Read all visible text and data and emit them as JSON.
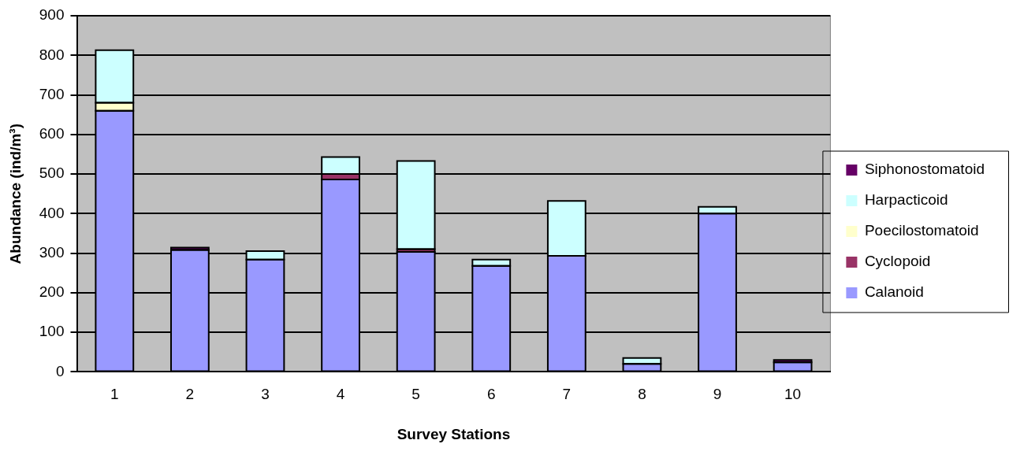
{
  "chart_data": {
    "type": "bar",
    "stacked": true,
    "xlabel": "Survey Stations",
    "ylabel": "Abundance (ind/m³)",
    "categories": [
      "1",
      "2",
      "3",
      "4",
      "5",
      "6",
      "7",
      "8",
      "9",
      "10"
    ],
    "series": [
      {
        "name": "Calanoid",
        "color": "#9999ff",
        "values": [
          660,
          308,
          284,
          486,
          303,
          268,
          293,
          20,
          400,
          24
        ]
      },
      {
        "name": "Cyclopoid",
        "color": "#993366",
        "values": [
          null,
          null,
          null,
          14,
          7,
          null,
          null,
          null,
          null,
          null
        ]
      },
      {
        "name": "Poecilostomatoid",
        "color": "#ffffcc",
        "values": [
          20,
          null,
          null,
          null,
          null,
          null,
          null,
          null,
          null,
          null
        ]
      },
      {
        "name": "Harpacticoid",
        "color": "#ccffff",
        "values": [
          133,
          null,
          21,
          43,
          223,
          16,
          139,
          15,
          17,
          null
        ]
      },
      {
        "name": "Siphonostomatoid",
        "color": "#660066",
        "values": [
          null,
          6,
          null,
          null,
          null,
          null,
          null,
          null,
          null,
          6
        ]
      }
    ],
    "ylim": [
      0,
      900
    ],
    "yticks": [
      0,
      100,
      200,
      300,
      400,
      500,
      600,
      700,
      800,
      900
    ],
    "grid": "y",
    "legend": "right"
  }
}
